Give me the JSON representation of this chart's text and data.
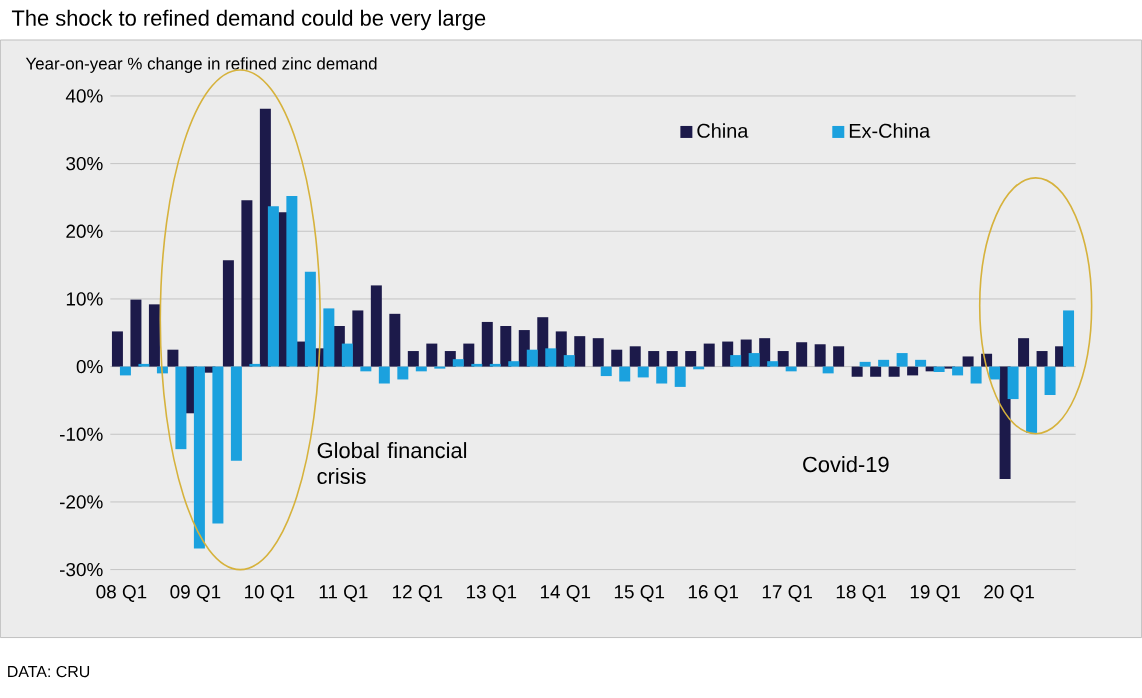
{
  "chart_data": {
    "type": "bar",
    "title": "The shock to refined demand could be very large",
    "ylabel": "Year-on-year % change in refined zinc demand",
    "annotations": [
      "Global financial crisis",
      "Covid-19",
      "DATA: CRU"
    ],
    "categories": [
      "08 Q1",
      null,
      null,
      null,
      "09 Q1",
      null,
      null,
      null,
      "10 Q1",
      null,
      null,
      null,
      "11 Q1",
      null,
      null,
      null,
      "12 Q1",
      null,
      null,
      null,
      "13 Q1",
      null,
      null,
      null,
      "14 Q1",
      null,
      null,
      null,
      "15 Q1",
      null,
      null,
      null,
      "16 Q1",
      null,
      null,
      null,
      "17 Q1",
      null,
      null,
      null,
      "18 Q1",
      null,
      null,
      null,
      "19 Q1",
      null,
      null,
      null,
      "20 Q1",
      null,
      null,
      null
    ],
    "series": [
      {
        "name": "China",
        "color": "#1c1a4a",
        "values": [
          5.2,
          9.9,
          9.2,
          2.5,
          -6.9,
          -0.9,
          15.7,
          24.6,
          38.1,
          22.8,
          3.7,
          2.7,
          6.0,
          8.3,
          12.0,
          7.8,
          2.3,
          3.4,
          2.3,
          3.4,
          6.6,
          6.0,
          5.4,
          7.3,
          5.2,
          4.5,
          4.2,
          2.5,
          3.0,
          2.3,
          2.3,
          2.3,
          3.4,
          3.7,
          4.0,
          4.2,
          2.3,
          3.6,
          3.3,
          3.0,
          -1.5,
          -1.5,
          -1.5,
          -1.3,
          -0.7,
          -0.3,
          1.5,
          1.9,
          -16.6,
          4.2,
          2.3,
          3.0
        ]
      },
      {
        "name": "Ex-China",
        "color": "#1ba1de",
        "values": [
          -1.3,
          0.4,
          -1.0,
          -12.2,
          -26.9,
          -23.2,
          -13.9,
          0.4,
          23.7,
          25.2,
          14.0,
          8.6,
          3.4,
          -0.7,
          -2.5,
          -1.9,
          -0.7,
          -0.3,
          1.1,
          0.4,
          0.4,
          0.8,
          2.5,
          2.7,
          1.7,
          0,
          -1.4,
          -2.2,
          -1.6,
          -2.5,
          -3.0,
          -0.4,
          0,
          1.7,
          2.0,
          0.8,
          -0.7,
          0,
          -1.0,
          0,
          0.7,
          1.0,
          2.0,
          1.0,
          -0.8,
          -1.3,
          -2.5,
          -1.9,
          -4.8,
          -9.8,
          -4.2,
          8.3
        ]
      }
    ],
    "ylim": [
      -30,
      40
    ],
    "yticks": [
      {
        "value": -30,
        "label": "-30%"
      },
      {
        "value": -20,
        "label": "-20%"
      },
      {
        "value": -10,
        "label": "-10%"
      },
      {
        "value": 0,
        "label": "0%"
      },
      {
        "value": 10,
        "label": "10%"
      },
      {
        "value": 20,
        "label": "20%"
      },
      {
        "value": 30,
        "label": "30%"
      },
      {
        "value": 40,
        "label": "40%"
      }
    ],
    "grid": "y",
    "legend": "top right"
  }
}
